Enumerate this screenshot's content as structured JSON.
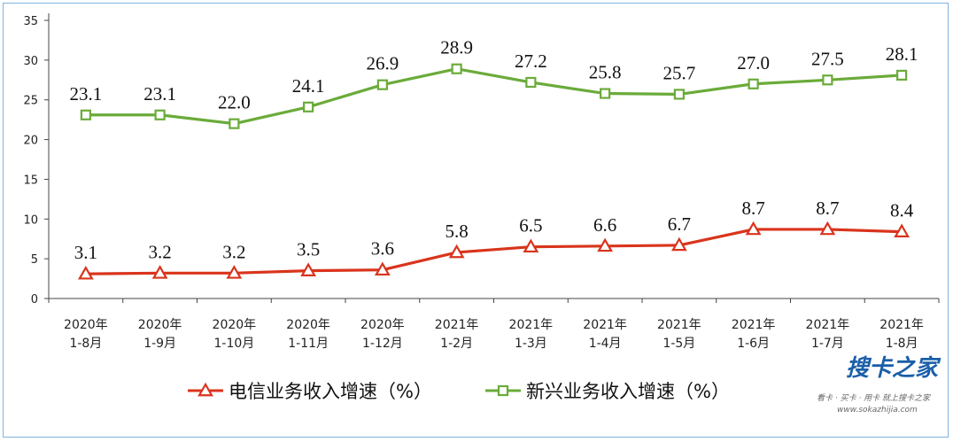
{
  "chart_data": {
    "type": "line",
    "categories": [
      [
        "2020年",
        "1-8月"
      ],
      [
        "2020年",
        "1-9月"
      ],
      [
        "2020年",
        "1-10月"
      ],
      [
        "2020年",
        "1-11月"
      ],
      [
        "2020年",
        "1-12月"
      ],
      [
        "2021年",
        "1-2月"
      ],
      [
        "2021年",
        "1-3月"
      ],
      [
        "2021年",
        "1-4月"
      ],
      [
        "2021年",
        "1-5月"
      ],
      [
        "2021年",
        "1-6月"
      ],
      [
        "2021年",
        "1-7月"
      ],
      [
        "2021年",
        "1-8月"
      ]
    ],
    "series": [
      {
        "name": "电信业务收入增速（%）",
        "color": "#d9341c",
        "marker": "triangle",
        "values": [
          3.1,
          3.2,
          3.2,
          3.5,
          3.6,
          5.8,
          6.5,
          6.6,
          6.7,
          8.7,
          8.7,
          8.4
        ],
        "labels": [
          "3.1",
          "3.2",
          "3.2",
          "3.5",
          "3.6",
          "5.8",
          "6.5",
          "6.6",
          "6.7",
          "8.7",
          "8.7",
          "8.4"
        ]
      },
      {
        "name": "新兴业务收入增速（%）",
        "color": "#6aab3a",
        "marker": "square",
        "values": [
          23.1,
          23.1,
          22.0,
          24.1,
          26.9,
          28.9,
          27.2,
          25.8,
          25.7,
          27.0,
          27.5,
          28.1
        ],
        "labels": [
          "23.1",
          "23.1",
          "22.0",
          "24.1",
          "26.9",
          "28.9",
          "27.2",
          "25.8",
          "25.7",
          "27.0",
          "27.5",
          "28.1"
        ]
      }
    ],
    "ylim": [
      0,
      35
    ],
    "yticks": [
      0,
      5,
      10,
      15,
      20,
      25,
      30,
      35
    ],
    "grid": false,
    "legend_position": "bottom",
    "title": "",
    "xlabel": "",
    "ylabel": ""
  },
  "watermark": {
    "main": "搜卡之家",
    "sub": "看卡 · 买卡 · 用卡 就上搜卡之家",
    "url": "www.sokazhijia.com"
  }
}
